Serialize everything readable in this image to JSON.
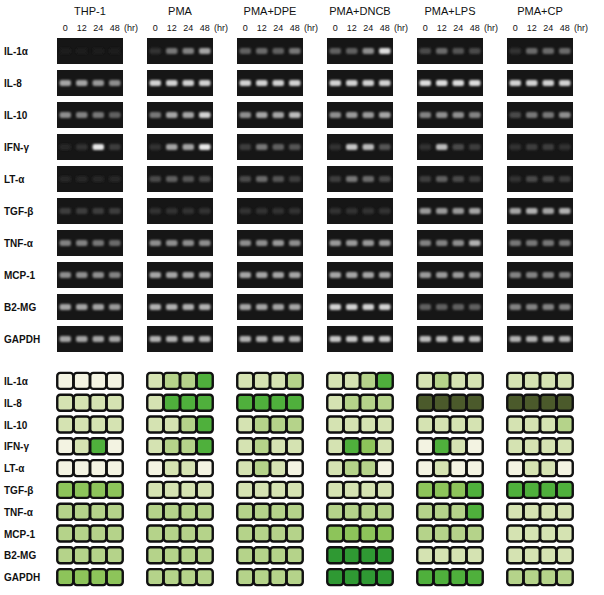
{
  "chart_data": {
    "type": "heatmap",
    "columns": [
      "THP-1",
      "PMA",
      "PMA+DPE",
      "PMA+DNCB",
      "PMA+LPS",
      "PMA+CP"
    ],
    "times": [
      0,
      12,
      24,
      48
    ],
    "time_unit": "(hr)",
    "rows": [
      "IL-1α",
      "IL-8",
      "IL-10",
      "IFN-γ",
      "LT-α",
      "TGF-β",
      "TNF-α",
      "MCP-1",
      "B2-MG",
      "GAPDH"
    ],
    "intensity_lim": [
      0,
      100
    ],
    "band_intensity": [
      [
        [
          0,
          0,
          0,
          0
        ],
        [
          60,
          60,
          55,
          50
        ],
        [
          50,
          45,
          40,
          30
        ],
        [
          5,
          10,
          90,
          15
        ],
        [
          5,
          5,
          5,
          5
        ],
        [
          15,
          15,
          15,
          15
        ],
        [
          45,
          45,
          40,
          35
        ],
        [
          50,
          50,
          50,
          45
        ],
        [
          60,
          60,
          60,
          55
        ],
        [
          60,
          60,
          60,
          60
        ]
      ],
      [
        [
          10,
          40,
          45,
          60
        ],
        [
          80,
          80,
          80,
          80
        ],
        [
          40,
          60,
          60,
          80
        ],
        [
          10,
          60,
          60,
          90
        ],
        [
          20,
          30,
          25,
          20
        ],
        [
          10,
          10,
          10,
          10
        ],
        [
          50,
          50,
          50,
          50
        ],
        [
          60,
          60,
          60,
          60
        ],
        [
          65,
          65,
          65,
          65
        ],
        [
          65,
          65,
          65,
          65
        ]
      ],
      [
        [
          30,
          35,
          30,
          40
        ],
        [
          80,
          80,
          80,
          80
        ],
        [
          50,
          60,
          60,
          70
        ],
        [
          15,
          40,
          30,
          25
        ],
        [
          20,
          35,
          25,
          15
        ],
        [
          10,
          10,
          10,
          10
        ],
        [
          50,
          50,
          55,
          50
        ],
        [
          60,
          60,
          60,
          60
        ],
        [
          60,
          60,
          60,
          60
        ],
        [
          65,
          65,
          65,
          65
        ]
      ],
      [
        [
          30,
          30,
          50,
          85
        ],
        [
          80,
          80,
          80,
          80
        ],
        [
          50,
          55,
          55,
          60
        ],
        [
          10,
          75,
          70,
          25
        ],
        [
          15,
          40,
          35,
          20
        ],
        [
          10,
          10,
          10,
          10
        ],
        [
          55,
          55,
          55,
          55
        ],
        [
          60,
          60,
          60,
          60
        ],
        [
          80,
          80,
          80,
          80
        ],
        [
          75,
          75,
          75,
          75
        ]
      ],
      [
        [
          20,
          35,
          25,
          20
        ],
        [
          85,
          85,
          85,
          85
        ],
        [
          45,
          50,
          50,
          45
        ],
        [
          10,
          70,
          20,
          15
        ],
        [
          15,
          30,
          20,
          15
        ],
        [
          55,
          55,
          55,
          60
        ],
        [
          45,
          45,
          50,
          65
        ],
        [
          55,
          55,
          55,
          55
        ],
        [
          30,
          30,
          30,
          30
        ],
        [
          70,
          70,
          70,
          70
        ]
      ],
      [
        [
          10,
          35,
          35,
          35
        ],
        [
          80,
          80,
          80,
          80
        ],
        [
          20,
          40,
          40,
          50
        ],
        [
          10,
          15,
          15,
          10
        ],
        [
          10,
          20,
          20,
          15
        ],
        [
          60,
          65,
          60,
          65
        ],
        [
          40,
          40,
          40,
          40
        ],
        [
          45,
          45,
          45,
          45
        ],
        [
          45,
          45,
          45,
          45
        ],
        [
          65,
          65,
          65,
          65
        ]
      ]
    ],
    "colors": [
      [
        [
          "#f3f3e2",
          "#f3f3e2",
          "#f3f3e2",
          "#f3f3e2"
        ],
        [
          "#d5e3b2",
          "#d5e3b2",
          "#d5e3b2",
          "#d5e3b2"
        ],
        [
          "#d5e3b2",
          "#d5e3b2",
          "#d5e3b2",
          "#d5e3b2"
        ],
        [
          "#f3f3e2",
          "#d5e3b2",
          "#4fb03c",
          "#f3f3e2"
        ],
        [
          "#f3f3e2",
          "#f3f3e2",
          "#f3f3e2",
          "#f3f3e2"
        ],
        [
          "#8dc45a",
          "#8dc45a",
          "#8dc45a",
          "#8dc45a"
        ],
        [
          "#b5d38a",
          "#b5d38a",
          "#b5d38a",
          "#b5d38a"
        ],
        [
          "#b5d38a",
          "#b5d38a",
          "#b5d38a",
          "#b5d38a"
        ],
        [
          "#b5d38a",
          "#b5d38a",
          "#b5d38a",
          "#b5d38a"
        ],
        [
          "#8dc45a",
          "#8dc45a",
          "#8dc45a",
          "#8dc45a"
        ]
      ],
      [
        [
          "#d5e3b2",
          "#b5d38a",
          "#b5d38a",
          "#4fb03c"
        ],
        [
          "#d5e3b2",
          "#4fb03c",
          "#4fb03c",
          "#4fb03c"
        ],
        [
          "#d5e3b2",
          "#d5e3b2",
          "#b5d38a",
          "#4fb03c"
        ],
        [
          "#d5e3b2",
          "#b5d38a",
          "#b5d38a",
          "#4fb03c"
        ],
        [
          "#f3f3e2",
          "#d5e3b2",
          "#d5e3b2",
          "#f3f3e2"
        ],
        [
          "#d5e3b2",
          "#d5e3b2",
          "#d5e3b2",
          "#d5e3b2"
        ],
        [
          "#b5d38a",
          "#b5d38a",
          "#b5d38a",
          "#b5d38a"
        ],
        [
          "#b5d38a",
          "#b5d38a",
          "#b5d38a",
          "#b5d38a"
        ],
        [
          "#b5d38a",
          "#b5d38a",
          "#b5d38a",
          "#b5d38a"
        ],
        [
          "#b5d38a",
          "#b5d38a",
          "#b5d38a",
          "#b5d38a"
        ]
      ],
      [
        [
          "#d5e3b2",
          "#d5e3b2",
          "#d5e3b2",
          "#b5d38a"
        ],
        [
          "#4fb03c",
          "#4fb03c",
          "#4fb03c",
          "#4fb03c"
        ],
        [
          "#d5e3b2",
          "#b5d38a",
          "#b5d38a",
          "#b5d38a"
        ],
        [
          "#d5e3b2",
          "#b5d38a",
          "#d5e3b2",
          "#d5e3b2"
        ],
        [
          "#d5e3b2",
          "#b5d38a",
          "#d5e3b2",
          "#f3f3e2"
        ],
        [
          "#d5e3b2",
          "#d5e3b2",
          "#d5e3b2",
          "#d5e3b2"
        ],
        [
          "#b5d38a",
          "#b5d38a",
          "#b5d38a",
          "#b5d38a"
        ],
        [
          "#b5d38a",
          "#b5d38a",
          "#b5d38a",
          "#b5d38a"
        ],
        [
          "#b5d38a",
          "#b5d38a",
          "#b5d38a",
          "#b5d38a"
        ],
        [
          "#b5d38a",
          "#b5d38a",
          "#b5d38a",
          "#b5d38a"
        ]
      ],
      [
        [
          "#d5e3b2",
          "#d5e3b2",
          "#b5d38a",
          "#4fb03c"
        ],
        [
          "#d5e3b2",
          "#b5d38a",
          "#b5d38a",
          "#b5d38a"
        ],
        [
          "#d5e3b2",
          "#d5e3b2",
          "#d5e3b2",
          "#d5e3b2"
        ],
        [
          "#d5e3b2",
          "#4fb03c",
          "#8dc45a",
          "#d5e3b2"
        ],
        [
          "#d5e3b2",
          "#b5d38a",
          "#b5d38a",
          "#f3f3e2"
        ],
        [
          "#d5e3b2",
          "#d5e3b2",
          "#d5e3b2",
          "#d5e3b2"
        ],
        [
          "#b5d38a",
          "#b5d38a",
          "#b5d38a",
          "#b5d38a"
        ],
        [
          "#8dc45a",
          "#8dc45a",
          "#8dc45a",
          "#8dc45a"
        ],
        [
          "#2f9933",
          "#2f9933",
          "#2f9933",
          "#2f9933"
        ],
        [
          "#2f9933",
          "#2f9933",
          "#2f9933",
          "#2f9933"
        ]
      ],
      [
        [
          "#d5e3b2",
          "#b5d38a",
          "#d5e3b2",
          "#d5e3b2"
        ],
        [
          "#4b5a2b",
          "#4b5a2b",
          "#4b5a2b",
          "#4b5a2b"
        ],
        [
          "#d5e3b2",
          "#d5e3b2",
          "#d5e3b2",
          "#d5e3b2"
        ],
        [
          "#f3f3e2",
          "#4fb03c",
          "#d5e3b2",
          "#f3f3e2"
        ],
        [
          "#f3f3e2",
          "#d5e3b2",
          "#f3f3e2",
          "#f3f3e2"
        ],
        [
          "#8dc45a",
          "#8dc45a",
          "#8dc45a",
          "#4fb03c"
        ],
        [
          "#b5d38a",
          "#b5d38a",
          "#b5d38a",
          "#4fb03c"
        ],
        [
          "#b5d38a",
          "#b5d38a",
          "#b5d38a",
          "#b5d38a"
        ],
        [
          "#d5e3b2",
          "#d5e3b2",
          "#d5e3b2",
          "#d5e3b2"
        ],
        [
          "#4fb03c",
          "#4fb03c",
          "#4fb03c",
          "#4fb03c"
        ]
      ],
      [
        [
          "#d5e3b2",
          "#d5e3b2",
          "#d5e3b2",
          "#d5e3b2"
        ],
        [
          "#4b5a2b",
          "#4b5a2b",
          "#4b5a2b",
          "#4b5a2b"
        ],
        [
          "#d5e3b2",
          "#d5e3b2",
          "#d5e3b2",
          "#b5d38a"
        ],
        [
          "#d5e3b2",
          "#d5e3b2",
          "#d5e3b2",
          "#d5e3b2"
        ],
        [
          "#f3f3e2",
          "#d5e3b2",
          "#d5e3b2",
          "#f3f3e2"
        ],
        [
          "#4fb03c",
          "#4fb03c",
          "#4fb03c",
          "#4fb03c"
        ],
        [
          "#d5e3b2",
          "#d5e3b2",
          "#d5e3b2",
          "#d5e3b2"
        ],
        [
          "#d5e3b2",
          "#d5e3b2",
          "#d5e3b2",
          "#d5e3b2"
        ],
        [
          "#d5e3b2",
          "#d5e3b2",
          "#d5e3b2",
          "#d5e3b2"
        ],
        [
          "#b5d38a",
          "#b5d38a",
          "#b5d38a",
          "#b5d38a"
        ]
      ]
    ]
  }
}
